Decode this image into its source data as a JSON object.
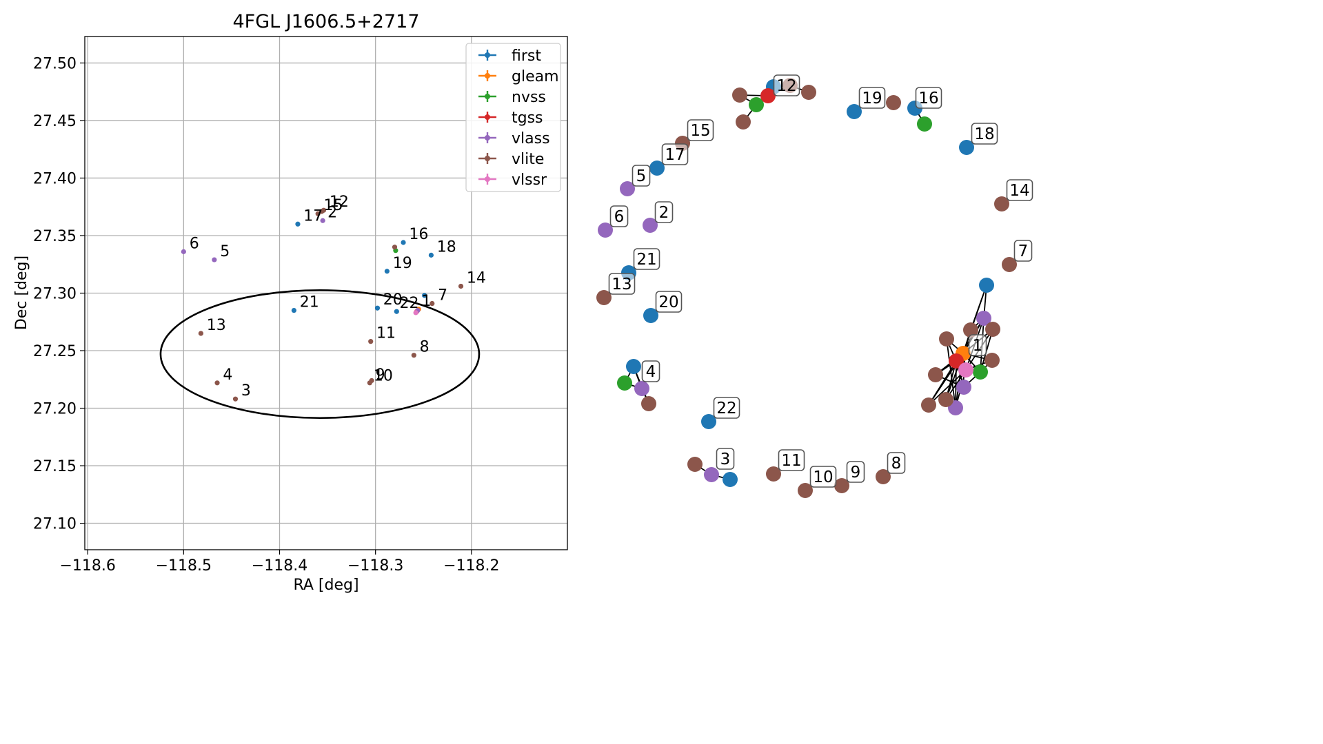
{
  "colors": {
    "first": "#1f77b4",
    "gleam": "#ff7f0e",
    "nvss": "#2ca02c",
    "tgss": "#d62728",
    "vlass": "#9467bd",
    "vlite": "#8c564b",
    "vlssr": "#e377c2"
  },
  "chart_data": [
    {
      "type": "scatter",
      "title": "4FGL J1606.5+2717",
      "xlabel": "RA [deg]",
      "ylabel": "Dec [deg]",
      "xlim": [
        -118.603,
        -118.1
      ],
      "ylim": [
        27.077,
        27.523
      ],
      "xticks": [
        -118.6,
        -118.5,
        -118.4,
        -118.3,
        -118.2
      ],
      "xtick_labels": [
        "−118.6",
        "−118.5",
        "−118.4",
        "−118.3",
        "−118.2"
      ],
      "yticks": [
        27.1,
        27.15,
        27.2,
        27.25,
        27.3,
        27.35,
        27.4,
        27.45,
        27.5
      ],
      "ytick_labels": [
        "27.10",
        "27.15",
        "27.20",
        "27.25",
        "27.30",
        "27.35",
        "27.40",
        "27.45",
        "27.50"
      ],
      "grid": true,
      "legend_position": "top-right",
      "legend": [
        "first",
        "gleam",
        "nvss",
        "tgss",
        "vlass",
        "vlite",
        "vlssr"
      ],
      "ellipse": {
        "center": [
          -118.358,
          27.247
        ],
        "semi_ra": 0.166,
        "semi_dec": 0.0555
      },
      "series": [
        {
          "name": "first",
          "points": [
            [
              -118.249,
              27.298
            ],
            [
              -118.271,
              27.344
            ],
            [
              -118.242,
              27.333
            ],
            [
              -118.288,
              27.319
            ],
            [
              -118.381,
              27.36
            ],
            [
              -118.385,
              27.285
            ],
            [
              -118.298,
              27.287
            ],
            [
              -118.278,
              27.284
            ]
          ]
        },
        {
          "name": "gleam",
          "points": [
            [
              -118.255,
              27.286
            ]
          ]
        },
        {
          "name": "nvss",
          "points": [
            [
              -118.279,
              27.337
            ]
          ]
        },
        {
          "name": "tgss",
          "points": [
            [
              -118.257,
              27.284
            ]
          ]
        },
        {
          "name": "vlass",
          "points": [
            [
              -118.355,
              27.363
            ],
            [
              -118.468,
              27.329
            ],
            [
              -118.5,
              27.336
            ],
            [
              -118.256,
              27.285
            ]
          ]
        },
        {
          "name": "vlite",
          "points": [
            [
              -118.446,
              27.208
            ],
            [
              -118.465,
              27.222
            ],
            [
              -118.482,
              27.265
            ],
            [
              -118.305,
              27.258
            ],
            [
              -118.26,
              27.246
            ],
            [
              -118.211,
              27.306
            ],
            [
              -118.241,
              27.291
            ],
            [
              -118.306,
              27.222
            ],
            [
              -118.304,
              27.224
            ],
            [
              -118.36,
              27.369
            ],
            [
              -118.354,
              27.372
            ],
            [
              -118.356,
              27.371
            ],
            [
              -118.28,
              27.34
            ]
          ]
        },
        {
          "name": "vlssr",
          "points": [
            [
              -118.258,
              27.283
            ]
          ]
        }
      ],
      "labels": [
        {
          "text": "1",
          "at": [
            -118.252,
            27.289
          ]
        },
        {
          "text": "2",
          "at": [
            -118.35,
            27.366
          ]
        },
        {
          "text": "3",
          "at": [
            -118.44,
            27.211
          ]
        },
        {
          "text": "4",
          "at": [
            -118.459,
            27.225
          ]
        },
        {
          "text": "5",
          "at": [
            -118.462,
            27.332
          ]
        },
        {
          "text": "6",
          "at": [
            -118.494,
            27.339
          ]
        },
        {
          "text": "7",
          "at": [
            -118.235,
            27.294
          ]
        },
        {
          "text": "8",
          "at": [
            -118.254,
            27.249
          ]
        },
        {
          "text": "9",
          "at": [
            -118.3,
            27.225
          ]
        },
        {
          "text": "10",
          "at": [
            -118.302,
            27.224
          ]
        },
        {
          "text": "11",
          "at": [
            -118.299,
            27.261
          ]
        },
        {
          "text": "12",
          "at": [
            -118.348,
            27.375
          ]
        },
        {
          "text": "13",
          "at": [
            -118.476,
            27.268
          ]
        },
        {
          "text": "14",
          "at": [
            -118.205,
            27.309
          ]
        },
        {
          "text": "15",
          "at": [
            -118.354,
            27.372
          ]
        },
        {
          "text": "16",
          "at": [
            -118.265,
            27.347
          ]
        },
        {
          "text": "17",
          "at": [
            -118.375,
            27.363
          ]
        },
        {
          "text": "18",
          "at": [
            -118.236,
            27.336
          ]
        },
        {
          "text": "19",
          "at": [
            -118.282,
            27.322
          ]
        },
        {
          "text": "20",
          "at": [
            -118.292,
            27.29
          ]
        },
        {
          "text": "21",
          "at": [
            -118.379,
            27.288
          ]
        },
        {
          "text": "22",
          "at": [
            -118.275,
            27.287
          ]
        }
      ]
    },
    {
      "type": "network",
      "nodes": [
        {
          "id": "f1",
          "cat": "first",
          "pos": [
            1431,
            414
          ]
        },
        {
          "id": "f16",
          "cat": "first",
          "pos": [
            1327,
            157
          ]
        },
        {
          "id": "f18",
          "cat": "first",
          "pos": [
            1402,
            214
          ]
        },
        {
          "id": "f19",
          "cat": "first",
          "pos": [
            1239,
            162
          ]
        },
        {
          "id": "f17",
          "cat": "first",
          "pos": [
            953,
            244
          ]
        },
        {
          "id": "f21",
          "cat": "first",
          "pos": [
            912,
            396
          ]
        },
        {
          "id": "f20",
          "cat": "first",
          "pos": [
            944,
            458
          ]
        },
        {
          "id": "f22",
          "cat": "first",
          "pos": [
            1028,
            612
          ]
        },
        {
          "id": "f3",
          "cat": "first",
          "pos": [
            1059,
            696
          ]
        },
        {
          "id": "f4",
          "cat": "first",
          "pos": [
            919,
            532
          ]
        },
        {
          "id": "f12",
          "cat": "first",
          "pos": [
            1122,
            126
          ]
        },
        {
          "id": "g1",
          "cat": "gleam",
          "pos": [
            1397,
            513
          ]
        },
        {
          "id": "n1",
          "cat": "nvss",
          "pos": [
            1422,
            540
          ]
        },
        {
          "id": "n4",
          "cat": "nvss",
          "pos": [
            906,
            556
          ]
        },
        {
          "id": "n12",
          "cat": "nvss",
          "pos": [
            1097,
            152
          ]
        },
        {
          "id": "n16",
          "cat": "nvss",
          "pos": [
            1341,
            180
          ]
        },
        {
          "id": "t1",
          "cat": "tgss",
          "pos": [
            1387,
            524
          ]
        },
        {
          "id": "t12",
          "cat": "tgss",
          "pos": [
            1114,
            139
          ]
        },
        {
          "id": "v1a",
          "cat": "vlass",
          "pos": [
            1427,
            462
          ]
        },
        {
          "id": "v1b",
          "cat": "vlass",
          "pos": [
            1398,
            562
          ]
        },
        {
          "id": "v1c",
          "cat": "vlass",
          "pos": [
            1386,
            592
          ]
        },
        {
          "id": "v5",
          "cat": "vlass",
          "pos": [
            910,
            274
          ]
        },
        {
          "id": "v6",
          "cat": "vlass",
          "pos": [
            878,
            334
          ]
        },
        {
          "id": "v2",
          "cat": "vlass",
          "pos": [
            943,
            327
          ]
        },
        {
          "id": "v4",
          "cat": "vlass",
          "pos": [
            931,
            564
          ]
        },
        {
          "id": "v3",
          "cat": "vlass",
          "pos": [
            1032,
            689
          ]
        },
        {
          "id": "l1a",
          "cat": "vlite",
          "pos": [
            1373,
            492
          ]
        },
        {
          "id": "l1b",
          "cat": "vlite",
          "pos": [
            1408,
            479
          ]
        },
        {
          "id": "l1c",
          "cat": "vlite",
          "pos": [
            1440,
            478
          ]
        },
        {
          "id": "l1d",
          "cat": "vlite",
          "pos": [
            1439,
            523
          ]
        },
        {
          "id": "l1e",
          "cat": "vlite",
          "pos": [
            1357,
            544
          ]
        },
        {
          "id": "l1f",
          "cat": "vlite",
          "pos": [
            1372,
            580
          ]
        },
        {
          "id": "l1g",
          "cat": "vlite",
          "pos": [
            1347,
            588
          ]
        },
        {
          "id": "l7",
          "cat": "vlite",
          "pos": [
            1464,
            384
          ]
        },
        {
          "id": "l14",
          "cat": "vlite",
          "pos": [
            1453,
            296
          ]
        },
        {
          "id": "l15",
          "cat": "vlite",
          "pos": [
            990,
            208
          ]
        },
        {
          "id": "l13",
          "cat": "vlite",
          "pos": [
            876,
            432
          ]
        },
        {
          "id": "l4",
          "cat": "vlite",
          "pos": [
            941,
            586
          ]
        },
        {
          "id": "l3",
          "cat": "vlite",
          "pos": [
            1008,
            674
          ]
        },
        {
          "id": "l11",
          "cat": "vlite",
          "pos": [
            1122,
            688
          ]
        },
        {
          "id": "l10",
          "cat": "vlite",
          "pos": [
            1168,
            712
          ]
        },
        {
          "id": "l9",
          "cat": "vlite",
          "pos": [
            1221,
            705
          ]
        },
        {
          "id": "l8",
          "cat": "vlite",
          "pos": [
            1281,
            692
          ]
        },
        {
          "id": "l16",
          "cat": "vlite",
          "pos": [
            1296,
            149
          ]
        },
        {
          "id": "l12a",
          "cat": "vlite",
          "pos": [
            1073,
            138
          ]
        },
        {
          "id": "l12b",
          "cat": "vlite",
          "pos": [
            1078,
            177
          ]
        },
        {
          "id": "l12c",
          "cat": "vlite",
          "pos": [
            1146,
            124
          ]
        },
        {
          "id": "l12d",
          "cat": "vlite",
          "pos": [
            1173,
            134
          ]
        },
        {
          "id": "s1",
          "cat": "vlssr",
          "pos": [
            1401,
            537
          ]
        }
      ],
      "edges": [
        [
          "f1",
          "l1b"
        ],
        [
          "f1",
          "v1a"
        ],
        [
          "f1",
          "g1"
        ],
        [
          "g1",
          "l1a"
        ],
        [
          "g1",
          "l1b"
        ],
        [
          "g1",
          "l1c"
        ],
        [
          "g1",
          "l1d"
        ],
        [
          "g1",
          "v1a"
        ],
        [
          "g1",
          "t1"
        ],
        [
          "g1",
          "n1"
        ],
        [
          "g1",
          "s1"
        ],
        [
          "g1",
          "v1b"
        ],
        [
          "g1",
          "v1c"
        ],
        [
          "g1",
          "l1e"
        ],
        [
          "g1",
          "l1f"
        ],
        [
          "g1",
          "l1g"
        ],
        [
          "t1",
          "l1a"
        ],
        [
          "t1",
          "l1e"
        ],
        [
          "t1",
          "l1f"
        ],
        [
          "t1",
          "l1g"
        ],
        [
          "t1",
          "s1"
        ],
        [
          "t1",
          "v1b"
        ],
        [
          "t1",
          "v1c"
        ],
        [
          "t1",
          "v1a"
        ],
        [
          "s1",
          "l1d"
        ],
        [
          "s1",
          "n1"
        ],
        [
          "s1",
          "v1c"
        ],
        [
          "s1",
          "l1f"
        ],
        [
          "s1",
          "l1g"
        ],
        [
          "s1",
          "v1a"
        ],
        [
          "s1",
          "l1c"
        ],
        [
          "n1",
          "l1d"
        ],
        [
          "n1",
          "v1b"
        ],
        [
          "n1",
          "l1c"
        ],
        [
          "n1",
          "v1a"
        ],
        [
          "v1a",
          "l1b"
        ],
        [
          "v1a",
          "l1c"
        ],
        [
          "l1a",
          "v1c"
        ],
        [
          "l1e",
          "v1b"
        ],
        [
          "l1f",
          "v1c"
        ],
        [
          "f16",
          "n16"
        ],
        [
          "f12",
          "t12"
        ],
        [
          "f12",
          "l12c"
        ],
        [
          "t12",
          "n12"
        ],
        [
          "t12",
          "l12a"
        ],
        [
          "n12",
          "l12b"
        ],
        [
          "n12",
          "l12a"
        ],
        [
          "l12c",
          "l12d"
        ],
        [
          "t12",
          "l12c"
        ],
        [
          "f4",
          "n4"
        ],
        [
          "f4",
          "v4"
        ],
        [
          "n4",
          "v4"
        ],
        [
          "v4",
          "l4"
        ],
        [
          "f4",
          "l4"
        ],
        [
          "l3",
          "v3"
        ],
        [
          "v3",
          "f3"
        ]
      ],
      "labels": [
        {
          "text": "1",
          "pos": [
            1418,
            501
          ]
        },
        {
          "text": "2",
          "pos": [
            963,
            308
          ]
        },
        {
          "text": "3",
          "pos": [
            1052,
            666
          ]
        },
        {
          "text": "4",
          "pos": [
            944,
            539
          ]
        },
        {
          "text": "5",
          "pos": [
            930,
            255
          ]
        },
        {
          "text": "6",
          "pos": [
            898,
            314
          ]
        },
        {
          "text": "7",
          "pos": [
            1484,
            364
          ]
        },
        {
          "text": "8",
          "pos": [
            1300,
            672
          ]
        },
        {
          "text": "9",
          "pos": [
            1241,
            685
          ]
        },
        {
          "text": "10",
          "pos": [
            1194,
            692
          ]
        },
        {
          "text": "11",
          "pos": [
            1148,
            668
          ]
        },
        {
          "text": "12",
          "pos": [
            1141,
            124
          ]
        },
        {
          "text": "13",
          "pos": [
            902,
            412
          ]
        },
        {
          "text": "14",
          "pos": [
            1479,
            276
          ]
        },
        {
          "text": "15",
          "pos": [
            1016,
            189
          ]
        },
        {
          "text": "16",
          "pos": [
            1347,
            142
          ]
        },
        {
          "text": "17",
          "pos": [
            979,
            224
          ]
        },
        {
          "text": "18",
          "pos": [
            1428,
            194
          ]
        },
        {
          "text": "19",
          "pos": [
            1265,
            142
          ]
        },
        {
          "text": "20",
          "pos": [
            970,
            438
          ]
        },
        {
          "text": "21",
          "pos": [
            938,
            376
          ]
        },
        {
          "text": "22",
          "pos": [
            1054,
            592
          ]
        }
      ]
    }
  ]
}
